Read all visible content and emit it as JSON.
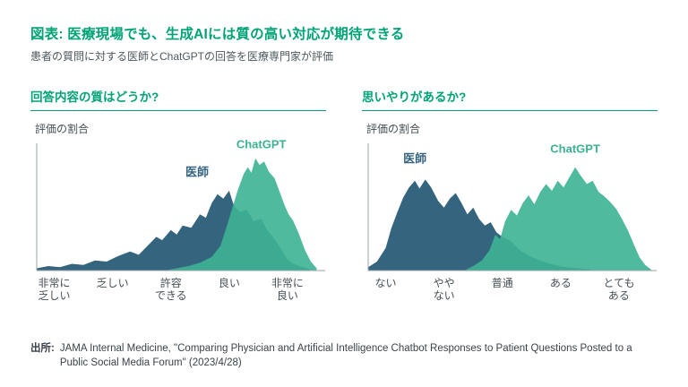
{
  "page": {
    "title": "図表: 医療現場でも、生成AIには質の高い対応が期待できる",
    "subtitle": "患者の質問に対する医師とChatGPTの回答を医療専門家が評価",
    "source_label": "出所:",
    "source_text": "JAMA Internal Medicine, \"Comparing Physician and Artificial Intelligence Chatbot Responses to Patient Questions Posted to a Public Social Media Forum\" (2023/4/28)"
  },
  "colors": {
    "accent_green": "#00a377",
    "physician_blue": "#35647f",
    "chatgpt_teal": "#3db293",
    "axis_gray": "#9aa3a8",
    "text_dark": "#454f55"
  },
  "chart_data": [
    {
      "type": "area",
      "title": "回答内容の質はどうか?",
      "ylabel": "評価の割合",
      "categories": [
        "非常に|乏しい",
        "乏しい",
        "許容|できる",
        "良い",
        "非常に|良い"
      ],
      "xlim": [
        -0.3,
        4.6
      ],
      "ylim": [
        0,
        1.18
      ],
      "grid": false,
      "legend_position": "inline-labels",
      "series": [
        {
          "name": "医師",
          "color": "#35647f",
          "opacity": 1,
          "label_x": 2.45,
          "label_y": 0.84,
          "points": [
            [
              -0.3,
              0.02
            ],
            [
              -0.1,
              0.04
            ],
            [
              0.1,
              0.03
            ],
            [
              0.3,
              0.06
            ],
            [
              0.5,
              0.05
            ],
            [
              0.7,
              0.09
            ],
            [
              0.9,
              0.08
            ],
            [
              1.1,
              0.13
            ],
            [
              1.3,
              0.17
            ],
            [
              1.45,
              0.14
            ],
            [
              1.6,
              0.22
            ],
            [
              1.75,
              0.3
            ],
            [
              1.85,
              0.27
            ],
            [
              2.0,
              0.36
            ],
            [
              2.1,
              0.32
            ],
            [
              2.2,
              0.4
            ],
            [
              2.35,
              0.38
            ],
            [
              2.5,
              0.5
            ],
            [
              2.6,
              0.47
            ],
            [
              2.7,
              0.6
            ],
            [
              2.8,
              0.68
            ],
            [
              2.9,
              0.64
            ],
            [
              3.0,
              0.71
            ],
            [
              3.08,
              0.58
            ],
            [
              3.18,
              0.52
            ],
            [
              3.3,
              0.54
            ],
            [
              3.42,
              0.44
            ],
            [
              3.55,
              0.46
            ],
            [
              3.65,
              0.36
            ],
            [
              3.78,
              0.28
            ],
            [
              3.9,
              0.18
            ],
            [
              4.0,
              0.1
            ],
            [
              4.1,
              0.06
            ],
            [
              4.25,
              0.03
            ],
            [
              4.4,
              0.01
            ]
          ]
        },
        {
          "name": "ChatGPT",
          "color": "#3db293",
          "opacity": 0.9,
          "label_x": 3.55,
          "label_y": 1.09,
          "points": [
            [
              1.9,
              0.0
            ],
            [
              2.1,
              0.02
            ],
            [
              2.3,
              0.04
            ],
            [
              2.5,
              0.07
            ],
            [
              2.7,
              0.12
            ],
            [
              2.85,
              0.22
            ],
            [
              2.95,
              0.38
            ],
            [
              3.05,
              0.55
            ],
            [
              3.15,
              0.72
            ],
            [
              3.25,
              0.86
            ],
            [
              3.32,
              0.92
            ],
            [
              3.38,
              0.87
            ],
            [
              3.45,
              1.0
            ],
            [
              3.52,
              0.94
            ],
            [
              3.6,
              0.97
            ],
            [
              3.68,
              0.88
            ],
            [
              3.78,
              0.82
            ],
            [
              3.88,
              0.68
            ],
            [
              3.95,
              0.58
            ],
            [
              4.02,
              0.5
            ],
            [
              4.1,
              0.44
            ],
            [
              4.2,
              0.32
            ],
            [
              4.3,
              0.18
            ],
            [
              4.4,
              0.08
            ],
            [
              4.5,
              0.02
            ]
          ]
        }
      ]
    },
    {
      "type": "area",
      "title": "思いやりがあるか?",
      "ylabel": "評価の割合",
      "categories": [
        "ない",
        "やや|ない",
        "普通",
        "ある",
        "とても|ある"
      ],
      "xlim": [
        -0.3,
        4.6
      ],
      "ylim": [
        0,
        1.18
      ],
      "grid": false,
      "legend_position": "inline-labels",
      "series": [
        {
          "name": "医師",
          "color": "#35647f",
          "opacity": 1,
          "label_x": 0.5,
          "label_y": 0.96,
          "points": [
            [
              -0.3,
              0.03
            ],
            [
              -0.15,
              0.08
            ],
            [
              0.0,
              0.2
            ],
            [
              0.1,
              0.38
            ],
            [
              0.2,
              0.52
            ],
            [
              0.3,
              0.65
            ],
            [
              0.4,
              0.74
            ],
            [
              0.5,
              0.8
            ],
            [
              0.58,
              0.73
            ],
            [
              0.68,
              0.81
            ],
            [
              0.78,
              0.74
            ],
            [
              0.9,
              0.62
            ],
            [
              1.0,
              0.56
            ],
            [
              1.1,
              0.64
            ],
            [
              1.2,
              0.69
            ],
            [
              1.3,
              0.6
            ],
            [
              1.4,
              0.5
            ],
            [
              1.5,
              0.56
            ],
            [
              1.6,
              0.46
            ],
            [
              1.7,
              0.4
            ],
            [
              1.8,
              0.43
            ],
            [
              1.9,
              0.34
            ],
            [
              2.0,
              0.3
            ],
            [
              2.15,
              0.26
            ],
            [
              2.3,
              0.18
            ],
            [
              2.5,
              0.12
            ],
            [
              2.7,
              0.08
            ],
            [
              2.9,
              0.05
            ],
            [
              3.1,
              0.03
            ],
            [
              3.3,
              0.02
            ],
            [
              3.5,
              0.01
            ]
          ]
        },
        {
          "name": "ChatGPT",
          "color": "#3db293",
          "opacity": 0.9,
          "label_x": 3.25,
          "label_y": 1.05,
          "points": [
            [
              1.35,
              0.0
            ],
            [
              1.5,
              0.04
            ],
            [
              1.65,
              0.09
            ],
            [
              1.78,
              0.18
            ],
            [
              1.88,
              0.32
            ],
            [
              1.96,
              0.28
            ],
            [
              2.05,
              0.44
            ],
            [
              2.15,
              0.54
            ],
            [
              2.25,
              0.49
            ],
            [
              2.35,
              0.6
            ],
            [
              2.45,
              0.67
            ],
            [
              2.55,
              0.59
            ],
            [
              2.65,
              0.7
            ],
            [
              2.75,
              0.77
            ],
            [
              2.85,
              0.71
            ],
            [
              2.95,
              0.8
            ],
            [
              3.05,
              0.74
            ],
            [
              3.15,
              0.83
            ],
            [
              3.25,
              0.92
            ],
            [
              3.35,
              0.84
            ],
            [
              3.45,
              0.77
            ],
            [
              3.55,
              0.8
            ],
            [
              3.65,
              0.7
            ],
            [
              3.75,
              0.66
            ],
            [
              3.85,
              0.61
            ],
            [
              3.95,
              0.55
            ],
            [
              4.05,
              0.46
            ],
            [
              4.15,
              0.36
            ],
            [
              4.25,
              0.24
            ],
            [
              4.35,
              0.12
            ],
            [
              4.45,
              0.05
            ],
            [
              4.55,
              0.01
            ]
          ]
        }
      ]
    }
  ]
}
